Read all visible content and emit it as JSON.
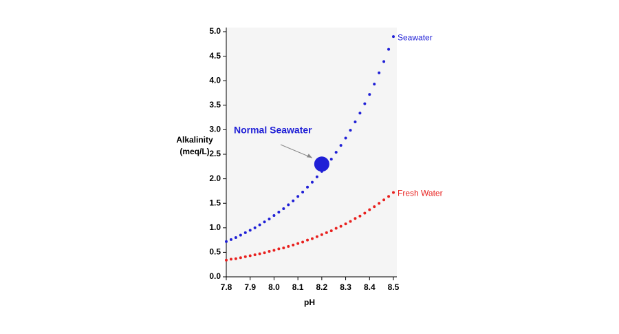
{
  "chart_data": {
    "type": "scatter",
    "xlabel": "pH",
    "ylabel_lines": [
      "Alkalinity",
      "(meq/L)"
    ],
    "x": [
      7.8,
      7.82,
      7.84,
      7.86,
      7.88,
      7.9,
      7.92,
      7.94,
      7.96,
      7.98,
      8.0,
      8.02,
      8.04,
      8.06,
      8.08,
      8.1,
      8.12,
      8.14,
      8.16,
      8.18,
      8.2,
      8.22,
      8.24,
      8.26,
      8.28,
      8.3,
      8.32,
      8.34,
      8.36,
      8.38,
      8.4,
      8.42,
      8.44,
      8.46,
      8.48,
      8.5
    ],
    "series": [
      {
        "name": "Seawater",
        "color": "#1f1fd6",
        "values": [
          0.72,
          0.76,
          0.8,
          0.85,
          0.9,
          0.95,
          1.0,
          1.06,
          1.12,
          1.18,
          1.25,
          1.32,
          1.39,
          1.47,
          1.55,
          1.64,
          1.73,
          1.83,
          1.93,
          2.04,
          2.15,
          2.27,
          2.4,
          2.54,
          2.68,
          2.83,
          2.99,
          3.16,
          3.34,
          3.53,
          3.72,
          3.93,
          4.16,
          4.39,
          4.64,
          4.9
        ]
      },
      {
        "name": "Fresh Water",
        "color": "#e8201e",
        "values": [
          0.34,
          0.36,
          0.37,
          0.39,
          0.41,
          0.43,
          0.45,
          0.47,
          0.49,
          0.52,
          0.54,
          0.57,
          0.59,
          0.62,
          0.65,
          0.68,
          0.71,
          0.75,
          0.78,
          0.82,
          0.86,
          0.9,
          0.94,
          0.99,
          1.03,
          1.08,
          1.13,
          1.19,
          1.24,
          1.3,
          1.37,
          1.43,
          1.5,
          1.57,
          1.64,
          1.72
        ]
      }
    ],
    "annotations": [
      {
        "text": "Normal Seawater",
        "x": 8.2,
        "y": 2.3,
        "color": "#1f1fd6"
      }
    ],
    "xlim": [
      7.8,
      8.5
    ],
    "xticks": [
      7.8,
      7.9,
      {
        "value": 8,
        "label": "8.0"
      },
      8.1,
      8.2,
      8.3,
      8.4,
      8.5
    ],
    "ylim": [
      0,
      5
    ],
    "yticks": [
      {
        "value": 0,
        "label": "0.0"
      },
      0.5,
      {
        "value": 1,
        "label": "1.0"
      },
      1.5,
      {
        "value": 2,
        "label": "2.0"
      },
      2.5,
      {
        "value": 3,
        "label": "3.0"
      },
      3.5,
      {
        "value": 4,
        "label": "4.0"
      },
      4.5,
      {
        "value": 5,
        "label": "5.0"
      }
    ],
    "grid": false
  }
}
